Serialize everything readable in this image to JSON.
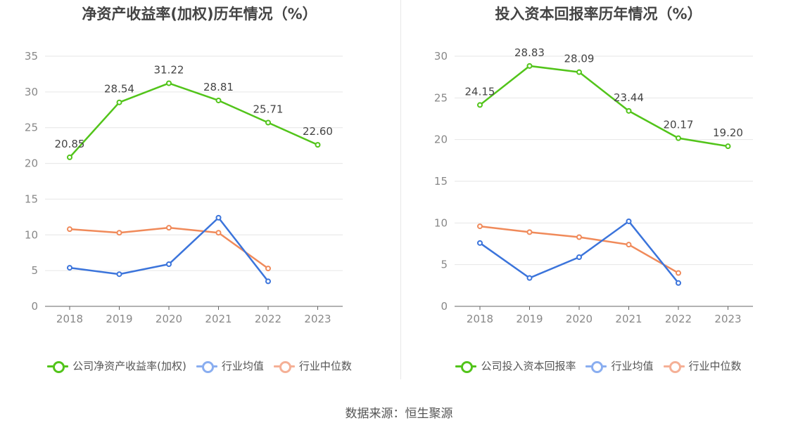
{
  "source": "数据来源：恒生聚源",
  "chart_data": [
    {
      "type": "line",
      "title": "净资产收益率(加权)历年情况（%）",
      "categories": [
        "2018",
        "2019",
        "2020",
        "2021",
        "2022",
        "2023"
      ],
      "ylim": [
        0,
        35
      ],
      "yticks": [
        "0",
        "5",
        "10",
        "15",
        "20",
        "25",
        "30",
        "35"
      ],
      "series": [
        {
          "name": "公司净资产收益率(加权)",
          "color": "#52c41a",
          "values": [
            20.85,
            28.54,
            31.22,
            28.81,
            25.71,
            22.6
          ],
          "labels": [
            "20.85",
            "28.54",
            "31.22",
            "28.81",
            "25.71",
            "22.60"
          ]
        },
        {
          "name": "行业均值",
          "color": "#3b74db",
          "legend_color": "#8aaef0",
          "values": [
            5.4,
            4.5,
            5.9,
            12.4,
            3.5,
            null
          ]
        },
        {
          "name": "行业中位数",
          "color": "#f08a5a",
          "legend_color": "#f5b096",
          "values": [
            10.8,
            10.3,
            11.0,
            10.3,
            5.3,
            null
          ]
        }
      ]
    },
    {
      "type": "line",
      "title": "投入资本回报率历年情况（%）",
      "categories": [
        "2018",
        "2019",
        "2020",
        "2021",
        "2022",
        "2023"
      ],
      "ylim": [
        0,
        30
      ],
      "yticks": [
        "0",
        "5",
        "10",
        "15",
        "20",
        "25",
        "30"
      ],
      "series": [
        {
          "name": "公司投入资本回报率",
          "color": "#52c41a",
          "values": [
            24.15,
            28.83,
            28.09,
            23.44,
            20.17,
            19.2
          ],
          "labels": [
            "24.15",
            "28.83",
            "28.09",
            "23.44",
            "20.17",
            "19.20"
          ]
        },
        {
          "name": "行业均值",
          "color": "#3b74db",
          "legend_color": "#8aaef0",
          "values": [
            7.6,
            3.4,
            5.9,
            10.2,
            2.8,
            null
          ]
        },
        {
          "name": "行业中位数",
          "color": "#f08a5a",
          "legend_color": "#f5b096",
          "values": [
            9.6,
            8.9,
            8.3,
            7.4,
            4.0,
            null
          ]
        }
      ]
    }
  ]
}
